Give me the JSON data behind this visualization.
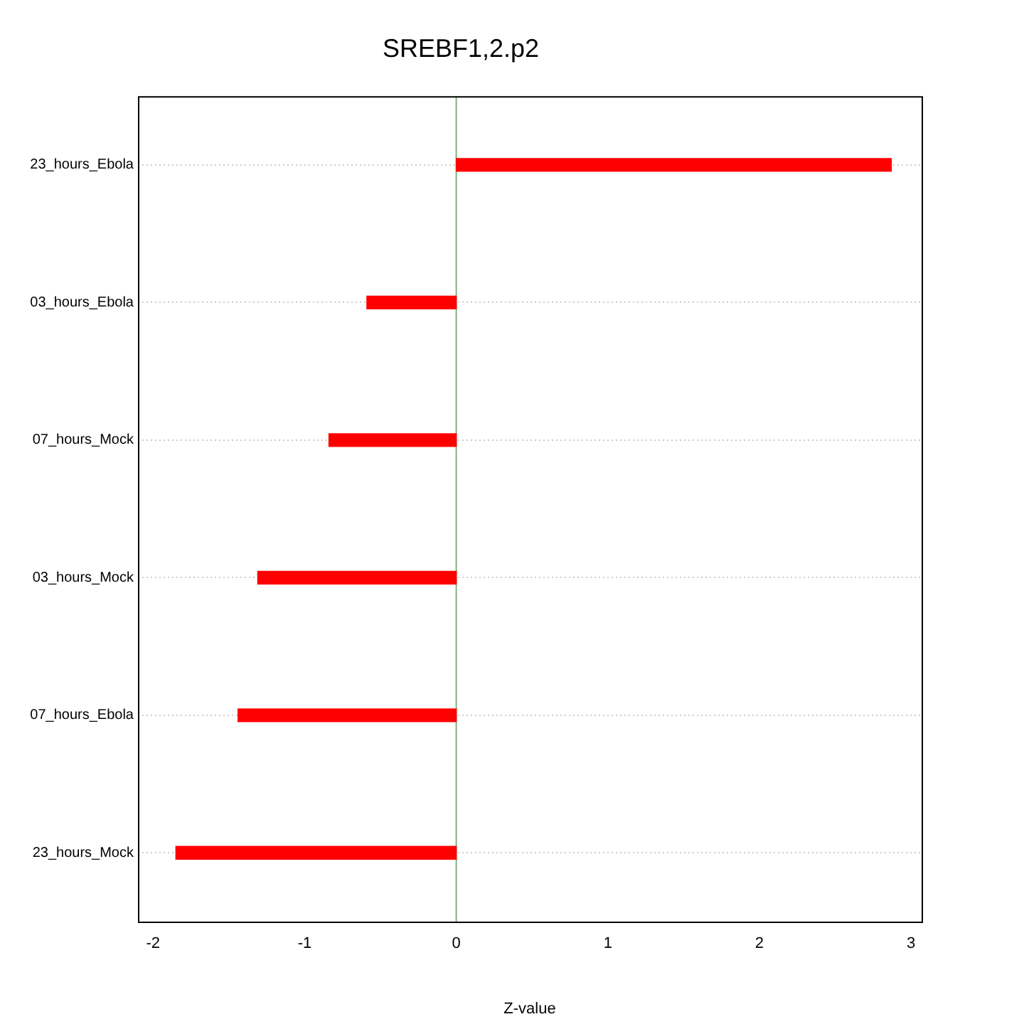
{
  "chart_data": {
    "type": "bar",
    "orientation": "horizontal",
    "title": "SREBF1,2.p2",
    "xlabel": "Z-value",
    "categories": [
      "23_hours_Ebola",
      "03_hours_Ebola",
      "07_hours_Mock",
      "03_hours_Mock",
      "07_hours_Ebola",
      "23_hours_Mock"
    ],
    "values": [
      2.87,
      -0.59,
      -0.84,
      -1.31,
      -1.44,
      -1.85
    ],
    "color": "#ff0000",
    "xlim": [
      -2.1,
      3.07
    ],
    "xticks": [
      -2,
      -1,
      0,
      1,
      2,
      3
    ],
    "grid": "y",
    "ref_lines": [
      {
        "axis": "x",
        "value": 0,
        "color": "#7fb27f"
      }
    ]
  }
}
